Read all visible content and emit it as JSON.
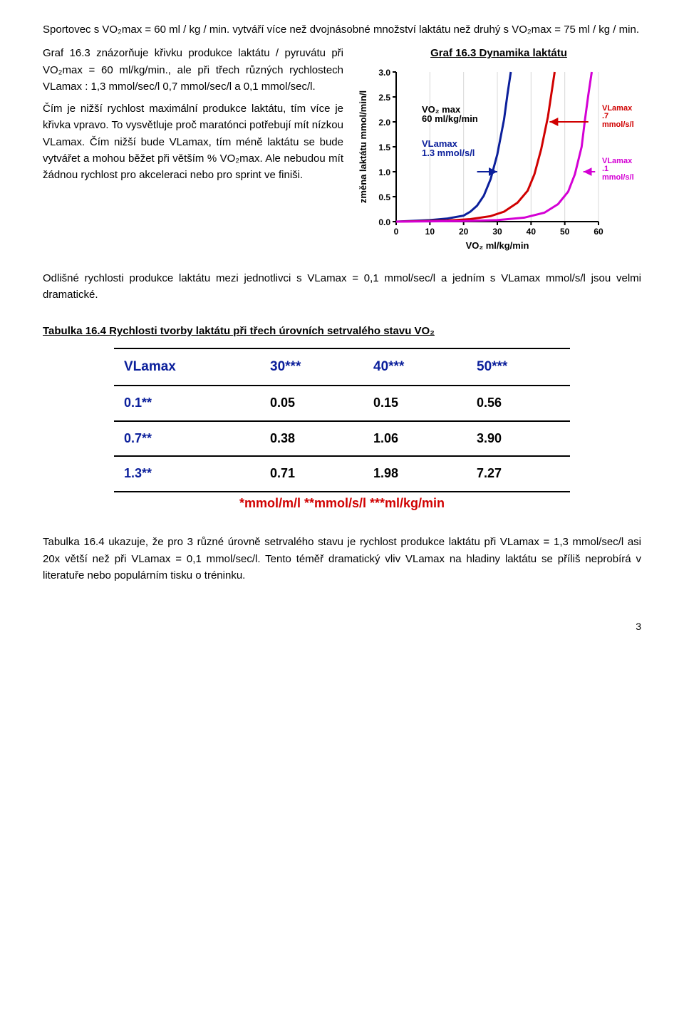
{
  "intro": {
    "p1": "Sportovec s VO₂max = 60 ml / kg / min. vytváří více než dvojnásobné množství laktátu než druhý s VO₂max = 75 ml / kg / min."
  },
  "leftcol": {
    "p1": "Graf 16.3 znázorňuje křivku produkce laktátu / pyruvátu při VO₂max = 60 ml/kg/min., ale při třech různých rychlostech VLamax : 1,3 mmol/sec/l 0,7 mmol/sec/l a 0,1 mmol/sec/l.",
    "p2": "Čím je nižší rychlost maximální produkce laktátu, tím více je křivka vpravo. To vysvětluje proč maratónci potřebují mít nízkou VLamax. Čím nižší bude VLamax, tím méně laktátu se bude vytvářet a mohou běžet při větším % VO₂max. Ale nebudou mít žádnou rychlost pro akceleraci nebo pro sprint ve finiši.",
    "p3": "Odlišné rychlosti produkce laktátu mezi jednotlivci s VLamax = 0,1 mmol/sec/l a jedním s VLamax mmol/s/l jsou velmi dramatické."
  },
  "chart": {
    "title": "Graf 16.3  Dynamika laktátu",
    "type": "line",
    "xlim": [
      0,
      60
    ],
    "ylim": [
      0,
      3.0
    ],
    "xticks": [
      0,
      10,
      20,
      30,
      40,
      50,
      60
    ],
    "yticks": [
      "0.0",
      "0.5",
      "1.0",
      "1.5",
      "2.0",
      "2.5",
      "3.0"
    ],
    "xlabel": "VO₂ ml/kg/min",
    "ylabel": "změna laktátu mmol/min/l",
    "axis_fontsize": 12,
    "label_fontsize": 13,
    "line_width": 3,
    "background": "#ffffff",
    "grid_color": "#d8d8d8",
    "series": [
      {
        "name": "VLamax 1.3 mmol/s/l",
        "color": "#0b1f9b",
        "x": [
          0,
          10,
          15,
          20,
          22,
          24,
          26,
          28,
          30,
          32,
          33,
          34
        ],
        "y": [
          0.0,
          0.03,
          0.06,
          0.12,
          0.2,
          0.32,
          0.52,
          0.85,
          1.35,
          2.05,
          2.55,
          3.0
        ]
      },
      {
        "name": "VLamax .7 mmol/s/l",
        "color": "#d00000",
        "x": [
          0,
          15,
          22,
          28,
          32,
          36,
          39,
          41,
          43,
          45,
          46,
          47
        ],
        "y": [
          0.0,
          0.02,
          0.05,
          0.11,
          0.2,
          0.38,
          0.62,
          0.95,
          1.45,
          2.1,
          2.55,
          3.0
        ]
      },
      {
        "name": "VLamax .1 mmol/s/l",
        "color": "#d400d4",
        "x": [
          0,
          20,
          30,
          38,
          44,
          48,
          51,
          53,
          55,
          56,
          57,
          58
        ],
        "y": [
          0.0,
          0.01,
          0.03,
          0.08,
          0.18,
          0.35,
          0.6,
          0.95,
          1.5,
          2.05,
          2.55,
          3.0
        ]
      }
    ],
    "annot": {
      "vo2max_label1": "VO₂ max",
      "vo2max_label2": "60 ml/kg/min",
      "arrow_red_label1": "VLamax",
      "arrow_red_label2": ".7 mmol/s/l",
      "arrow_blue_label1": "VLamax",
      "arrow_blue_label2": "1.3 mmol/s/l",
      "arrow_mag_label1": "VLamax",
      "arrow_mag_label2": ".1 mmol/s/l"
    }
  },
  "table": {
    "heading": "Tabulka 16.4  Rychlosti tvorby laktátu při třech úrovních setrvalého stavu VO₂",
    "columns": [
      "VLamax",
      "30***",
      "40***",
      "50***"
    ],
    "rows": [
      [
        "0.1**",
        "0.05",
        "0.15",
        "0.56"
      ],
      [
        "0.7**",
        "0.38",
        "1.06",
        "3.90"
      ],
      [
        "1.3**",
        "0.71",
        "1.98",
        "7.27"
      ]
    ],
    "footnote": "*mmol/m/l **mmol/s/l ***ml/kg/min",
    "lbl_color": "#0b1f9b",
    "foot_color": "#d00000"
  },
  "closing": {
    "p1": "Tabulka 16.4 ukazuje, že pro 3 různé úrovně setrvalého stavu je rychlost produkce laktátu při VLamax = 1,3 mmol/sec/l asi 20x větší  než při VLamax = 0,1 mmol/sec/l. Tento téměř dramatický vliv VLamax na hladiny laktátu se příliš neprobírá v literatuře nebo populárním tisku o tréninku."
  },
  "pagenum": "3"
}
